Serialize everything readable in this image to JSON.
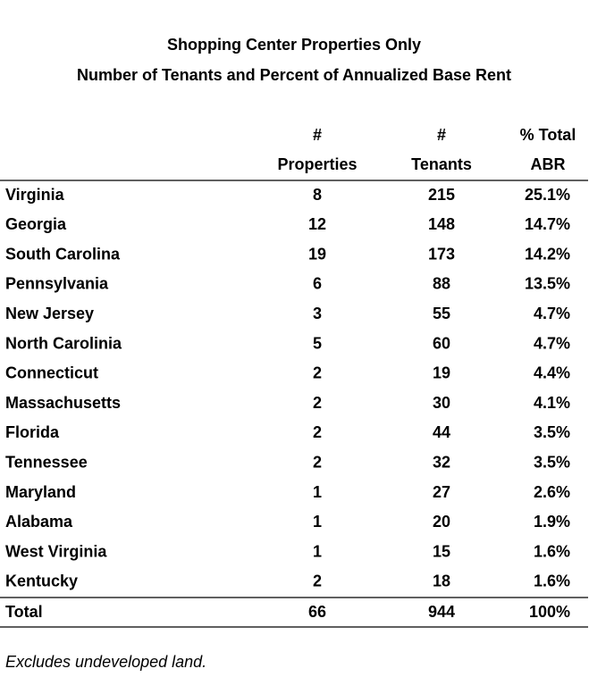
{
  "title": [
    "Shopping Center Properties Only",
    "Number of Tenants and Percent of Annualized Base Rent"
  ],
  "table": {
    "header": [
      [
        "#",
        "#",
        "% Total"
      ],
      [
        "Properties",
        "Tenants",
        "ABR"
      ]
    ],
    "rows": [
      [
        "Virginia",
        "8",
        "215",
        "25.1%"
      ],
      [
        "Georgia",
        "12",
        "148",
        "14.7%"
      ],
      [
        "South Carolina",
        "19",
        "173",
        "14.2%"
      ],
      [
        "Pennsylvania",
        "6",
        "88",
        "13.5%"
      ],
      [
        "New Jersey",
        "3",
        "55",
        "4.7%"
      ],
      [
        "North Carolinia",
        "5",
        "60",
        "4.7%"
      ],
      [
        "Connecticut",
        "2",
        "19",
        "4.4%"
      ],
      [
        "Massachusetts",
        "2",
        "30",
        "4.1%"
      ],
      [
        "Florida",
        "2",
        "44",
        "3.5%"
      ],
      [
        "Tennessee",
        "2",
        "32",
        "3.5%"
      ],
      [
        "Maryland",
        "1",
        "27",
        "2.6%"
      ],
      [
        "Alabama",
        "1",
        "20",
        "1.9%"
      ],
      [
        "West Virginia",
        "1",
        "15",
        "1.6%"
      ],
      [
        "Kentucky",
        "2",
        "18",
        "1.6%"
      ]
    ],
    "total": [
      "Total",
      "66",
      "944",
      "100%"
    ]
  },
  "footnote": "Excludes undeveloped land."
}
